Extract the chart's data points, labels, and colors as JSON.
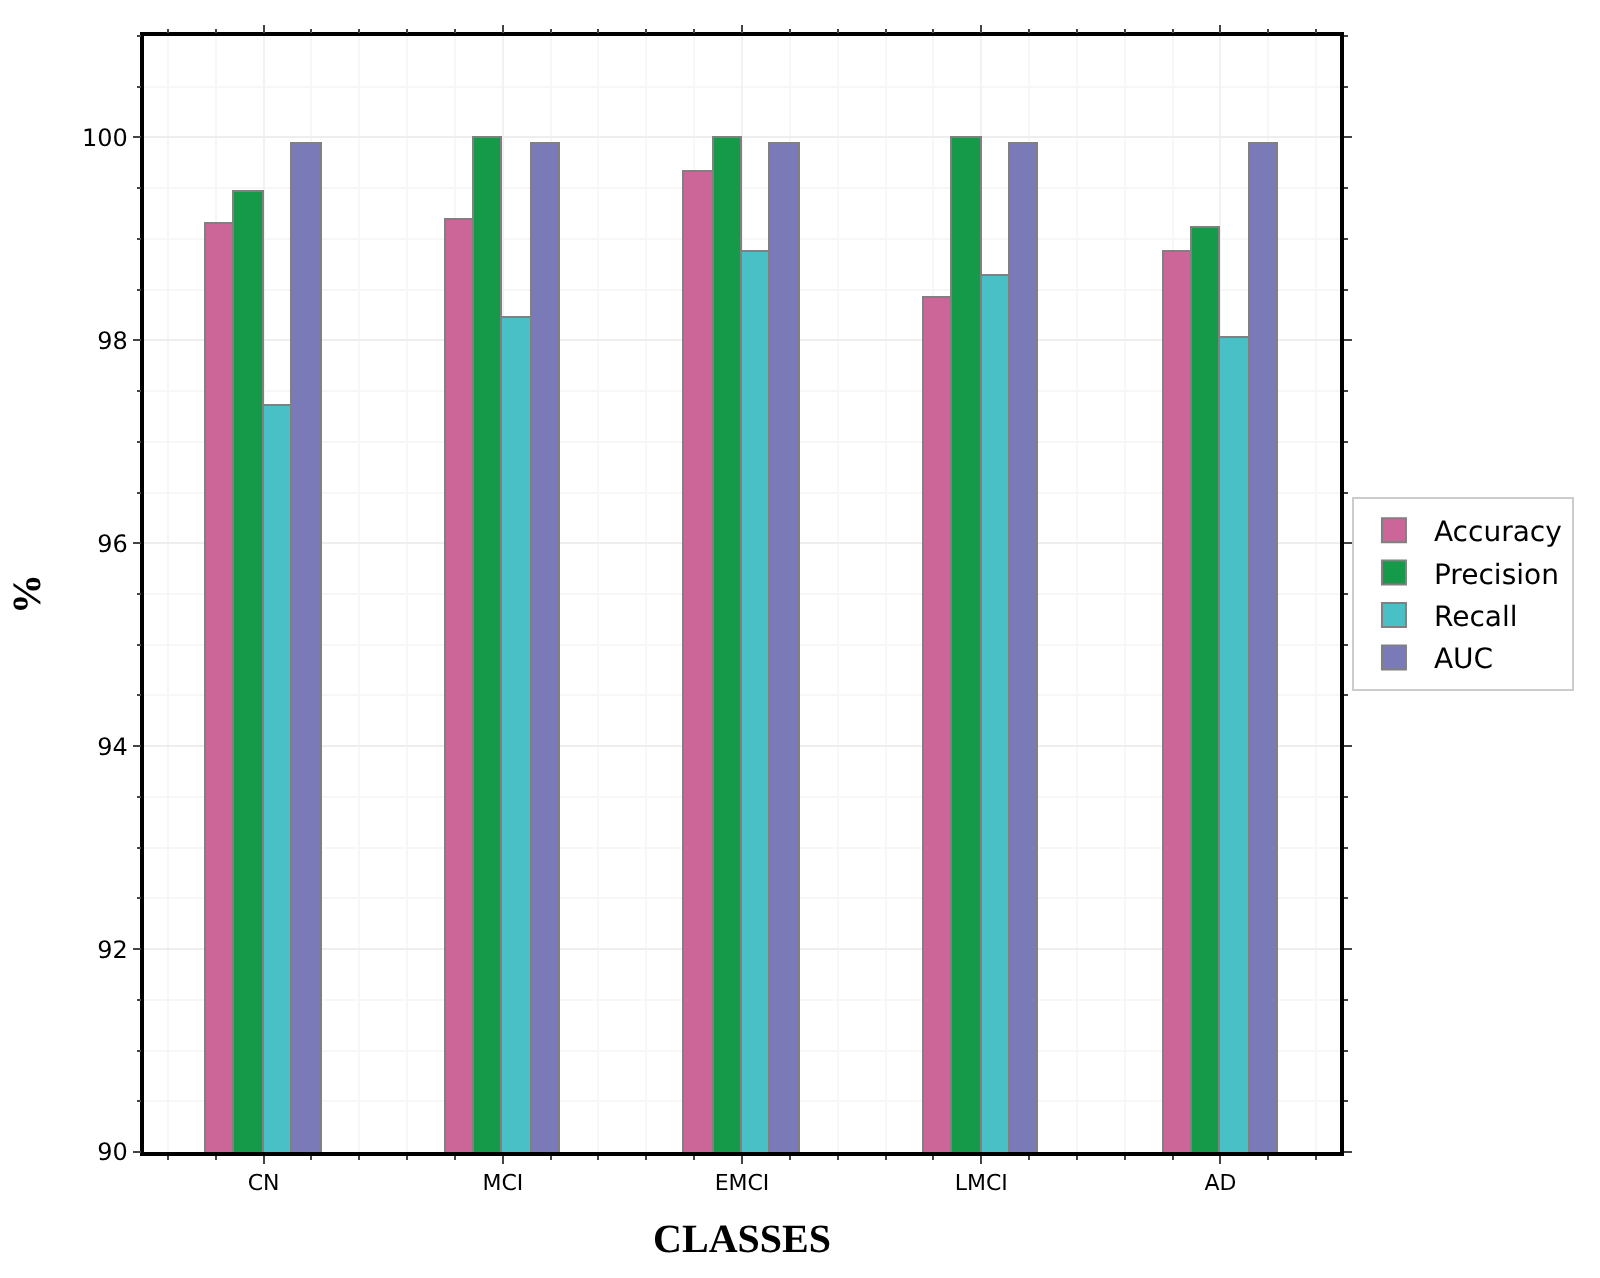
{
  "chart_data": {
    "type": "bar",
    "xlabel": "CLASSES",
    "ylabel": "%",
    "categories": [
      "CN",
      "MCI",
      "EMCI",
      "LMCI",
      "AD"
    ],
    "series": [
      {
        "name": "Accuracy",
        "color": "#cc6699",
        "values": [
          99.14,
          99.19,
          99.66,
          98.42,
          98.88
        ]
      },
      {
        "name": "Precision",
        "color": "#149a48",
        "values": [
          99.46,
          100,
          100,
          100,
          99.11
        ]
      },
      {
        "name": "Recall",
        "color": "#48c0c6",
        "values": [
          97.35,
          98.23,
          98.88,
          98.63,
          98.03
        ]
      },
      {
        "name": "AUC",
        "color": "#7a7ab8",
        "values": [
          99.94,
          99.94,
          99.94,
          99.94,
          99.94
        ]
      }
    ],
    "ylim": [
      90,
      101
    ],
    "yticks": [
      90,
      92,
      94,
      96,
      98,
      100
    ],
    "grid": true,
    "legend": "right"
  }
}
